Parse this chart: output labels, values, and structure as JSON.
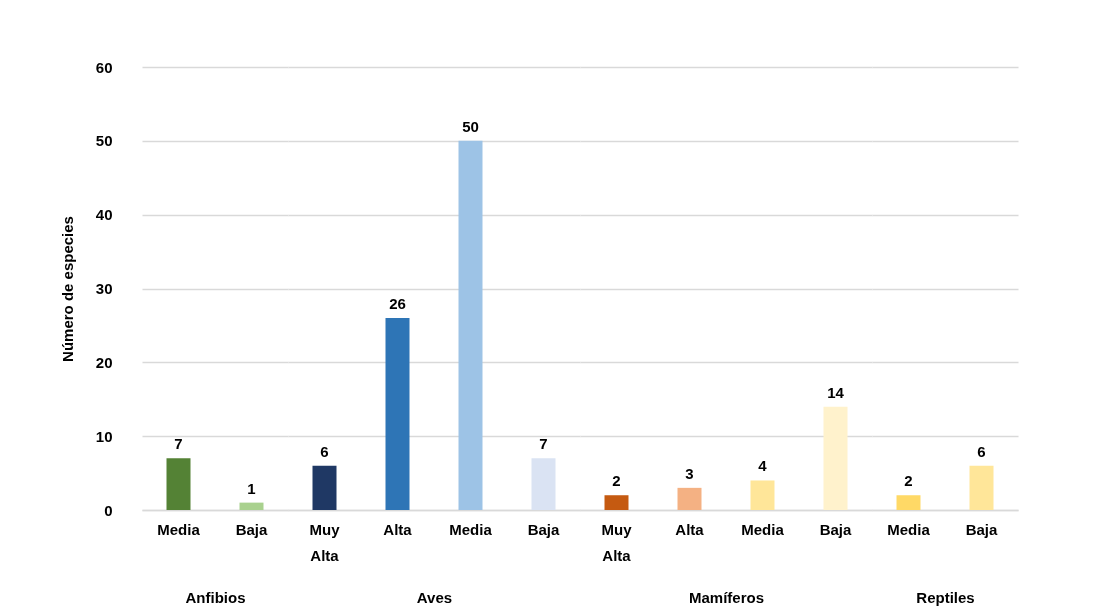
{
  "chart_data": [
    {
      "type": "bar",
      "xlabel": "Anfibios",
      "ylabel": "Número de especies",
      "categories": [
        "Media",
        "Baja"
      ],
      "values": [
        7,
        1
      ],
      "colors": [
        "#548235",
        "#a9d18e"
      ],
      "ylim": [
        0,
        60
      ],
      "yticks": [
        0,
        10,
        20,
        30,
        40,
        50,
        60
      ],
      "grid": "y",
      "data_labels": true
    },
    {
      "type": "bar",
      "xlabel": "Aves",
      "categories": [
        "Muy Alta",
        "Alta",
        "Media",
        "Baja"
      ],
      "values": [
        6,
        26,
        50,
        7
      ],
      "colors": [
        "#1f3864",
        "#2e75b6",
        "#9dc3e6",
        "#dae3f3"
      ],
      "ylim": [
        0,
        60
      ],
      "yticks": [
        0,
        10,
        20,
        30,
        40,
        50,
        60
      ],
      "grid": "y",
      "data_labels": true,
      "tick_labels": "x"
    },
    {
      "type": "bar",
      "xlabel": "Mamíferos",
      "categories": [
        "Muy Alta",
        "Alta",
        "Media",
        "Baja"
      ],
      "values": [
        2,
        3,
        4,
        14
      ],
      "colors": [
        "#c55a11",
        "#f4b183",
        "#ffe699",
        "#fff2cc"
      ],
      "ylim": [
        0,
        60
      ],
      "yticks": [
        0,
        10,
        20,
        30,
        40,
        50,
        60
      ],
      "grid": "y",
      "data_labels": true,
      "tick_labels": "x"
    },
    {
      "type": "bar",
      "xlabel": "Reptiles",
      "categories": [
        "Media",
        "Baja"
      ],
      "values": [
        2,
        6
      ],
      "colors": [
        "#ffd966",
        "#ffe699"
      ],
      "ylim": [
        0,
        60
      ],
      "yticks": [
        0,
        10,
        20,
        30,
        40,
        50,
        60
      ],
      "grid": "y",
      "data_labels": true,
      "tick_labels": "x"
    }
  ]
}
